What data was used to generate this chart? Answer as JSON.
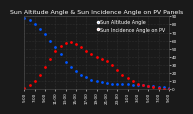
{
  "title": "Sun Altitude Angle & Sun Incidence Angle on PV Panels",
  "blue_label": "Sun Altitude Angle",
  "red_label": "Sun Incidence Angle on PV",
  "blue_x": [
    0,
    1,
    2,
    3,
    4,
    5,
    6,
    7,
    8,
    9,
    10,
    11,
    12,
    13,
    14,
    15,
    16,
    17,
    18,
    19,
    20,
    21,
    22,
    23,
    24,
    25,
    26,
    27,
    28
  ],
  "blue_y": [
    88,
    85,
    80,
    75,
    68,
    60,
    52,
    43,
    34,
    27,
    22,
    18,
    15,
    12,
    10,
    9,
    8,
    7,
    7,
    6,
    6,
    5,
    5,
    5,
    4,
    4,
    3,
    3,
    2
  ],
  "red_x": [
    0,
    1,
    2,
    3,
    4,
    5,
    6,
    7,
    8,
    9,
    10,
    11,
    12,
    13,
    14,
    15,
    16,
    17,
    18,
    19,
    20,
    21,
    22,
    23,
    24,
    25,
    26,
    27,
    28
  ],
  "red_y": [
    2,
    5,
    10,
    18,
    28,
    38,
    47,
    53,
    57,
    58,
    56,
    52,
    47,
    43,
    40,
    38,
    35,
    30,
    24,
    18,
    14,
    10,
    7,
    5,
    4,
    3,
    2,
    1,
    1
  ],
  "xlim": [
    0,
    28
  ],
  "ylim": [
    0,
    90
  ],
  "ytick_values": [
    90,
    80,
    70,
    60,
    50,
    40,
    30,
    20,
    10,
    0
  ],
  "xtick_labels": [
    "5:00",
    "6:00",
    "7:00",
    "8:00",
    "9:00",
    "10:00",
    "11:00",
    "12:00",
    "13:00",
    "14:00",
    "15:00",
    "16:00",
    "17:00",
    "18:00",
    "19:00",
    "20:00",
    "21:00",
    "22:00",
    "23:00",
    "0:00",
    "1:00",
    "2:00",
    "3:00",
    "4:00",
    "5:00",
    "6:00",
    "7:00",
    "8:00",
    "9:00"
  ],
  "blue_color": "#0055ff",
  "red_color": "#ff0000",
  "bg_color": "#1a1a1a",
  "plot_bg": "#1a1a1a",
  "grid_color": "#444444",
  "title_fontsize": 4.5,
  "tick_fontsize": 3.0,
  "legend_fontsize": 3.5,
  "marker_size": 2.0
}
